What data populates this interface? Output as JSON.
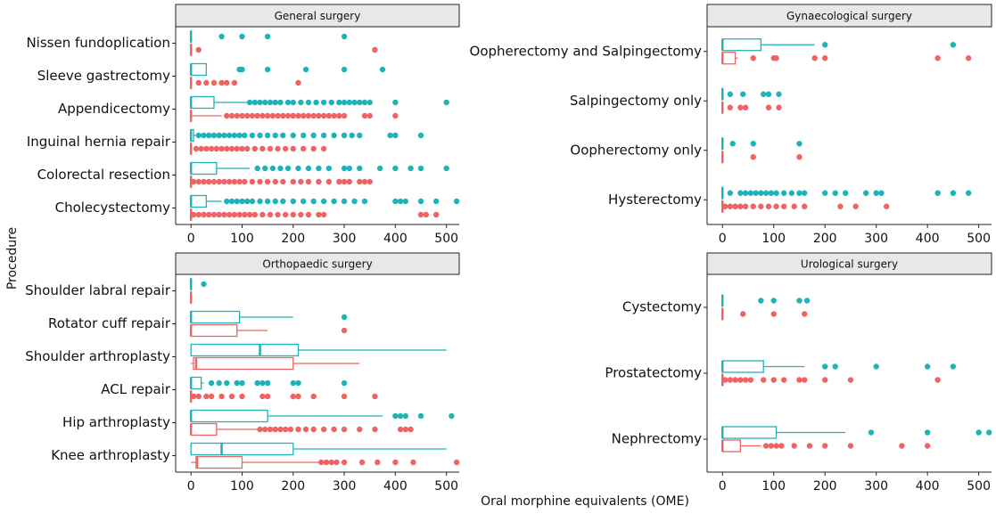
{
  "ylabel": "Procedure",
  "xlabel": "Oral morphine equivalents (OME)",
  "chart_data": [
    {
      "type": "box",
      "title": "General surgery",
      "xlim": [
        -30,
        525
      ],
      "xticks": [
        0,
        100,
        200,
        300,
        400,
        500
      ],
      "categories": [
        "Nissen fundoplication",
        "Sleeve gastrectomy",
        "Appendicectomy",
        "Inguinal hernia repair",
        "Colorectal resection",
        "Cholecystectomy"
      ],
      "series": [
        {
          "color": "#1fb3b9",
          "values": [
            {
              "min": 0,
              "q1": 0,
              "median": 0,
              "q3": 0,
              "max": 0,
              "outliers": [
                60,
                100,
                150,
                300
              ]
            },
            {
              "min": 0,
              "q1": 0,
              "median": 0,
              "q3": 30,
              "max": 30,
              "outliers": [
                95,
                100,
                150,
                225,
                300,
                375
              ]
            },
            {
              "min": 0,
              "q1": 0,
              "median": 0,
              "q3": 45,
              "max": 110,
              "outliers": [
                115,
                125,
                135,
                145,
                155,
                165,
                175,
                190,
                200,
                215,
                230,
                245,
                260,
                275,
                290,
                300,
                310,
                320,
                330,
                340,
                350,
                400,
                500
              ]
            },
            {
              "min": 0,
              "q1": 0,
              "median": 0,
              "q3": 5,
              "max": 10,
              "outliers": [
                15,
                25,
                35,
                45,
                55,
                65,
                75,
                85,
                95,
                105,
                120,
                135,
                150,
                165,
                180,
                200,
                220,
                240,
                260,
                280,
                300,
                315,
                330,
                390,
                400,
                450
              ]
            },
            {
              "min": 0,
              "q1": 0,
              "median": 0,
              "q3": 50,
              "max": 115,
              "outliers": [
                130,
                145,
                160,
                175,
                190,
                210,
                230,
                250,
                270,
                300,
                310,
                330,
                370,
                400,
                430,
                450,
                500
              ]
            },
            {
              "min": 0,
              "q1": 0,
              "median": 0,
              "q3": 30,
              "max": 60,
              "outliers": [
                70,
                80,
                90,
                100,
                110,
                120,
                135,
                150,
                165,
                180,
                200,
                220,
                240,
                260,
                280,
                300,
                320,
                340,
                400,
                410,
                420,
                450,
                480,
                520
              ]
            }
          ]
        },
        {
          "color": "#ee6363",
          "values": [
            {
              "min": 0,
              "q1": 0,
              "median": 0,
              "q3": 0,
              "max": 0,
              "outliers": [
                15,
                360
              ]
            },
            {
              "min": 0,
              "q1": 0,
              "median": 0,
              "q3": 0,
              "max": 0,
              "outliers": [
                15,
                30,
                45,
                60,
                70,
                85,
                210
              ]
            },
            {
              "min": 0,
              "q1": 0,
              "median": 0,
              "q3": 0,
              "max": 60,
              "outliers": [
                70,
                80,
                90,
                100,
                110,
                120,
                130,
                140,
                150,
                160,
                170,
                180,
                190,
                200,
                210,
                220,
                230,
                240,
                250,
                260,
                270,
                280,
                290,
                300,
                340,
                350,
                400
              ]
            },
            {
              "min": 0,
              "q1": 0,
              "median": 0,
              "q3": 0,
              "max": 0,
              "outliers": [
                10,
                20,
                30,
                40,
                50,
                60,
                70,
                80,
                90,
                100,
                110,
                125,
                140,
                155,
                170,
                185,
                200,
                220,
                240,
                260
              ]
            },
            {
              "min": 0,
              "q1": 0,
              "median": 0,
              "q3": 0,
              "max": 0,
              "outliers": [
                5,
                15,
                25,
                35,
                45,
                55,
                65,
                75,
                85,
                95,
                105,
                120,
                135,
                150,
                165,
                180,
                200,
                215,
                230,
                250,
                270,
                290,
                300,
                310,
                330,
                340,
                350
              ]
            },
            {
              "min": 0,
              "q1": 0,
              "median": 0,
              "q3": 0,
              "max": 0,
              "outliers": [
                5,
                15,
                25,
                35,
                45,
                55,
                65,
                75,
                85,
                95,
                105,
                115,
                125,
                140,
                155,
                170,
                185,
                200,
                215,
                230,
                250,
                260,
                450,
                460,
                480
              ]
            }
          ]
        }
      ]
    },
    {
      "type": "box",
      "title": "Gynaecological surgery",
      "xlim": [
        -30,
        525
      ],
      "xticks": [
        0,
        100,
        200,
        300,
        400,
        500
      ],
      "categories": [
        "Oopherectomy and Salpingectomy",
        "Salpingectomy only",
        "Oopherectomy only",
        "Hysterectomy"
      ],
      "series": [
        {
          "color": "#1fb3b9",
          "values": [
            {
              "min": 0,
              "q1": 0,
              "median": 0,
              "q3": 75,
              "max": 180,
              "outliers": [
                200,
                450
              ]
            },
            {
              "min": 0,
              "q1": 0,
              "median": 0,
              "q3": 0,
              "max": 0,
              "outliers": [
                15,
                40,
                80,
                90,
                110
              ]
            },
            {
              "min": 0,
              "q1": 0,
              "median": 0,
              "q3": 0,
              "max": 0,
              "outliers": [
                20,
                60,
                150
              ]
            },
            {
              "min": 0,
              "q1": 0,
              "median": 0,
              "q3": 0,
              "max": 0,
              "outliers": [
                15,
                35,
                45,
                55,
                65,
                75,
                85,
                95,
                105,
                120,
                135,
                150,
                160,
                200,
                220,
                240,
                280,
                300,
                310,
                420,
                450,
                480
              ]
            }
          ]
        },
        {
          "color": "#ee6363",
          "values": [
            {
              "min": 0,
              "q1": 0,
              "median": 0,
              "q3": 25,
              "max": 30,
              "outliers": [
                60,
                100,
                105,
                180,
                200,
                420,
                480
              ]
            },
            {
              "min": 0,
              "q1": 0,
              "median": 0,
              "q3": 0,
              "max": 0,
              "outliers": [
                15,
                35,
                45,
                90,
                110
              ]
            },
            {
              "min": 0,
              "q1": 0,
              "median": 0,
              "q3": 0,
              "max": 0,
              "outliers": [
                60,
                150
              ]
            },
            {
              "min": 0,
              "q1": 0,
              "median": 0,
              "q3": 0,
              "max": 0,
              "outliers": [
                5,
                15,
                25,
                35,
                45,
                60,
                75,
                90,
                105,
                120,
                140,
                160,
                230,
                260,
                320
              ]
            }
          ]
        }
      ]
    },
    {
      "type": "box",
      "title": "Orthopaedic surgery",
      "xlim": [
        -30,
        525
      ],
      "xticks": [
        0,
        100,
        200,
        300,
        400,
        500
      ],
      "categories": [
        "Shoulder labral repair",
        "Rotator cuff repair",
        "Shoulder arthroplasty",
        "ACL repair",
        "Hip arthroplasty",
        "Knee arthroplasty"
      ],
      "series": [
        {
          "color": "#1fb3b9",
          "values": [
            {
              "min": 0,
              "q1": 0,
              "median": 0,
              "q3": 0,
              "max": 0,
              "outliers": [
                25
              ]
            },
            {
              "min": 0,
              "q1": 0,
              "median": 0,
              "q3": 95,
              "max": 200,
              "outliers": [
                300
              ]
            },
            {
              "min": 0,
              "q1": 0,
              "median": 135,
              "q3": 210,
              "max": 500,
              "outliers": []
            },
            {
              "min": 0,
              "q1": 0,
              "median": 0,
              "q3": 20,
              "max": 25,
              "outliers": [
                40,
                55,
                70,
                90,
                100,
                130,
                140,
                150,
                200,
                210,
                300
              ]
            },
            {
              "min": 0,
              "q1": 0,
              "median": 0,
              "q3": 150,
              "max": 375,
              "outliers": [
                400,
                410,
                420,
                450,
                510
              ]
            },
            {
              "min": 0,
              "q1": 0,
              "median": 60,
              "q3": 200,
              "max": 500,
              "outliers": []
            }
          ]
        },
        {
          "color": "#ee6363",
          "values": [
            {
              "min": 0,
              "q1": 0,
              "median": 0,
              "q3": 0,
              "max": 0,
              "outliers": []
            },
            {
              "min": 0,
              "q1": 0,
              "median": 0,
              "q3": 90,
              "max": 150,
              "outliers": [
                300
              ]
            },
            {
              "min": 0,
              "q1": 5,
              "median": 10,
              "q3": 200,
              "max": 330,
              "outliers": []
            },
            {
              "min": 0,
              "q1": 0,
              "median": 0,
              "q3": 0,
              "max": 0,
              "outliers": [
                5,
                15,
                30,
                40,
                60,
                80,
                100,
                140,
                150,
                200,
                210,
                240,
                300,
                360
              ]
            },
            {
              "min": 0,
              "q1": 0,
              "median": 0,
              "q3": 50,
              "max": 130,
              "outliers": [
                135,
                145,
                155,
                165,
                175,
                185,
                195,
                210,
                225,
                240,
                260,
                280,
                300,
                330,
                360,
                410,
                420,
                430
              ]
            },
            {
              "min": 0,
              "q1": 10,
              "median": 12,
              "q3": 100,
              "max": 250,
              "outliers": [
                255,
                265,
                275,
                285,
                300,
                335,
                365,
                400,
                435,
                520
              ]
            }
          ]
        }
      ]
    },
    {
      "type": "box",
      "title": "Urological surgery",
      "xlim": [
        -30,
        525
      ],
      "xticks": [
        0,
        100,
        200,
        300,
        400,
        500
      ],
      "categories": [
        "Cystectomy",
        "Prostatectomy",
        "Nephrectomy"
      ],
      "series": [
        {
          "color": "#1fb3b9",
          "values": [
            {
              "min": 0,
              "q1": 0,
              "median": 0,
              "q3": 0,
              "max": 0,
              "outliers": [
                75,
                100,
                150,
                165
              ]
            },
            {
              "min": 0,
              "q1": 0,
              "median": 0,
              "q3": 80,
              "max": 160,
              "outliers": [
                200,
                220,
                300,
                400,
                450
              ]
            },
            {
              "min": 0,
              "q1": 0,
              "median": 0,
              "q3": 105,
              "max": 240,
              "outliers": [
                290,
                400,
                500,
                520
              ]
            }
          ]
        },
        {
          "color": "#ee6363",
          "values": [
            {
              "min": 0,
              "q1": 0,
              "median": 0,
              "q3": 0,
              "max": 0,
              "outliers": [
                40,
                100,
                160
              ]
            },
            {
              "min": 0,
              "q1": 0,
              "median": 0,
              "q3": 0,
              "max": 0,
              "outliers": [
                5,
                15,
                25,
                35,
                45,
                55,
                80,
                100,
                120,
                150,
                160,
                200,
                250,
                420
              ]
            },
            {
              "min": 0,
              "q1": 0,
              "median": 0,
              "q3": 35,
              "max": 75,
              "outliers": [
                85,
                95,
                105,
                115,
                140,
                170,
                200,
                250,
                350,
                400
              ]
            }
          ]
        }
      ]
    }
  ]
}
